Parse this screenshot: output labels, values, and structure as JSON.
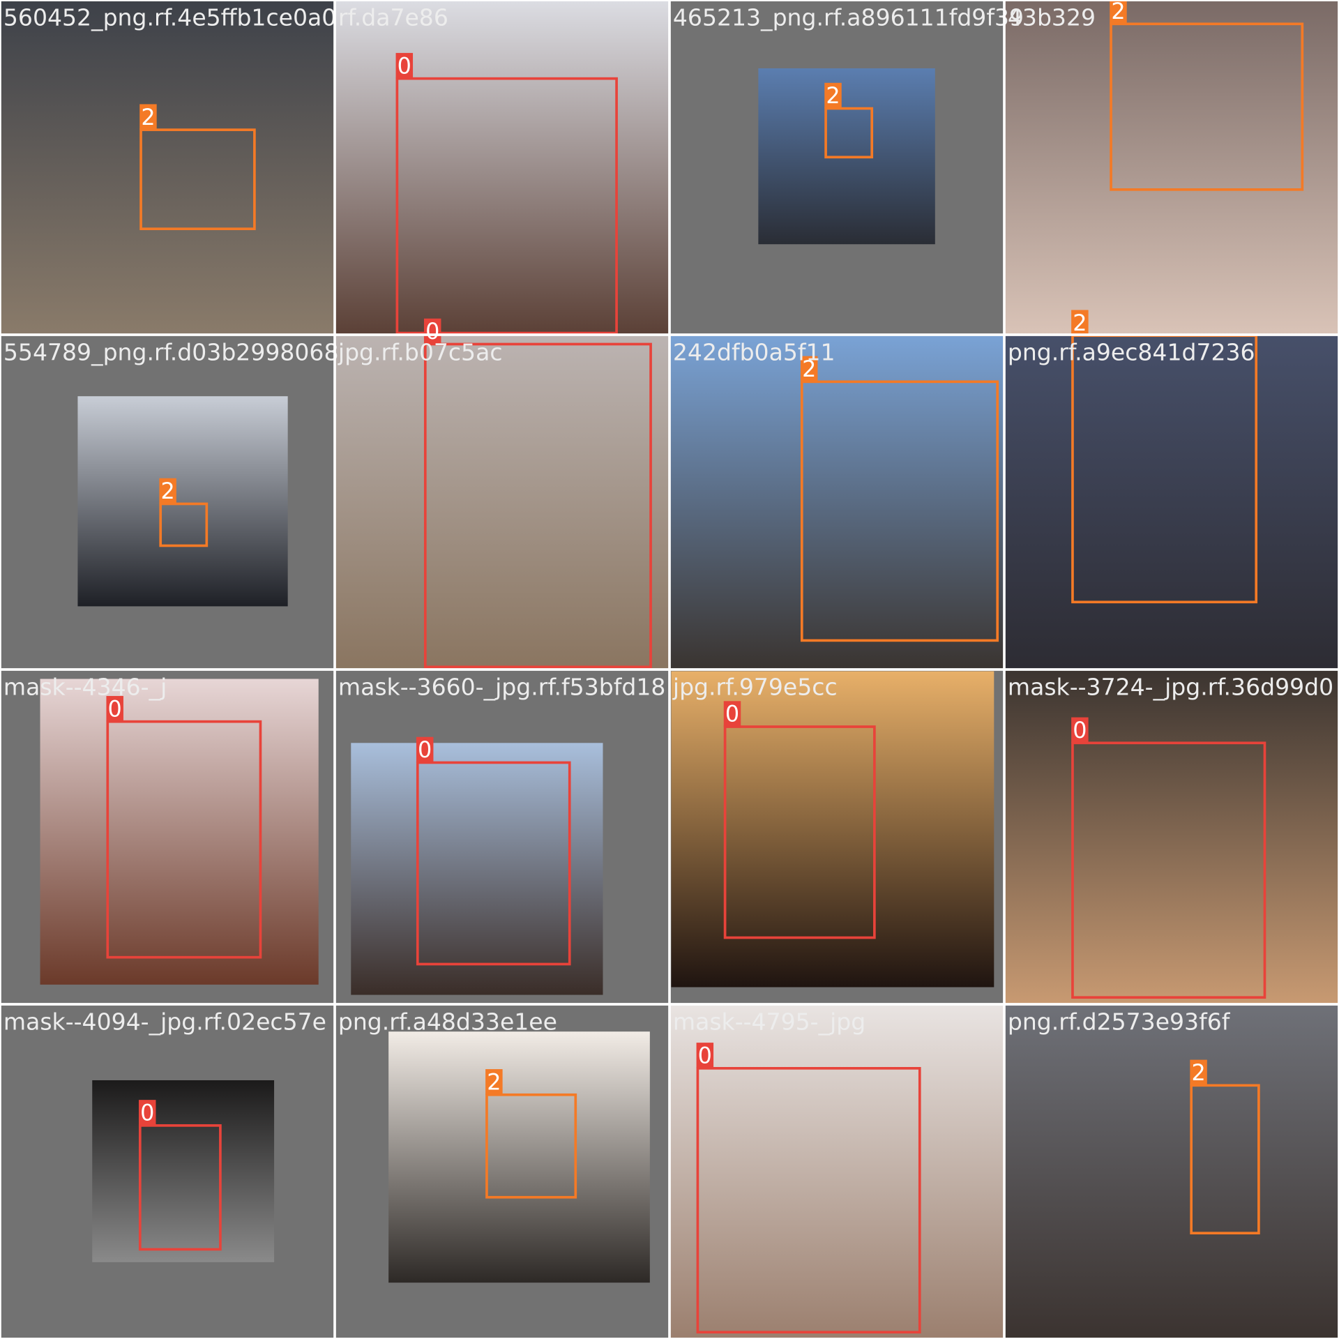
{
  "tiles": [
    {
      "filename": "560452_png.rf.4e5ffb1ce0a0",
      "boxes": [
        {
          "label": 2,
          "color": "#f47a26"
        }
      ]
    },
    {
      "filename": "rf.da7e86",
      "boxes": [
        {
          "label": 0,
          "color": "#e8433a"
        }
      ]
    },
    {
      "filename": "465213_png.rf.a896111fd9f39",
      "boxes": [
        {
          "label": 2,
          "color": "#f47a26"
        }
      ]
    },
    {
      "filename": "43b329",
      "boxes": [
        {
          "label": 2,
          "color": "#f47a26"
        }
      ]
    },
    {
      "filename": "554789_png.rf.d03b2998068",
      "boxes": [
        {
          "label": 2,
          "color": "#f47a26"
        }
      ]
    },
    {
      "filename": "jpg.rf.b07c5ac",
      "boxes": [
        {
          "label": 0,
          "color": "#e8433a"
        }
      ]
    },
    {
      "filename": "242dfb0a5f11",
      "boxes": [
        {
          "label": 2,
          "color": "#f47a26"
        }
      ]
    },
    {
      "filename": "png.rf.a9ec841d7236",
      "boxes": [
        {
          "label": 2,
          "color": "#f47a26"
        }
      ]
    },
    {
      "filename": "mask--4346-_j",
      "boxes": [
        {
          "label": 0,
          "color": "#e8433a"
        }
      ]
    },
    {
      "filename": "mask--3660-_jpg.rf.f53bfd18",
      "boxes": [
        {
          "label": 0,
          "color": "#e8433a"
        }
      ]
    },
    {
      "filename": "jpg.rf.979e5cc",
      "boxes": [
        {
          "label": 0,
          "color": "#e8433a"
        }
      ]
    },
    {
      "filename": "mask--3724-_jpg.rf.36d99d0",
      "boxes": [
        {
          "label": 0,
          "color": "#e8433a"
        }
      ]
    },
    {
      "filename": "mask--4094-_jpg.rf.02ec57e",
      "boxes": [
        {
          "label": 0,
          "color": "#e8433a"
        }
      ]
    },
    {
      "filename": "png.rf.a48d33e1ee",
      "boxes": [
        {
          "label": 2,
          "color": "#f47a26"
        }
      ]
    },
    {
      "filename": "mask--4795-_jpg",
      "boxes": [
        {
          "label": 0,
          "color": "#e8433a"
        }
      ]
    },
    {
      "filename": "png.rf.d2573e93f6f",
      "boxes": [
        {
          "label": 2,
          "color": "#f47a26"
        }
      ]
    }
  ]
}
